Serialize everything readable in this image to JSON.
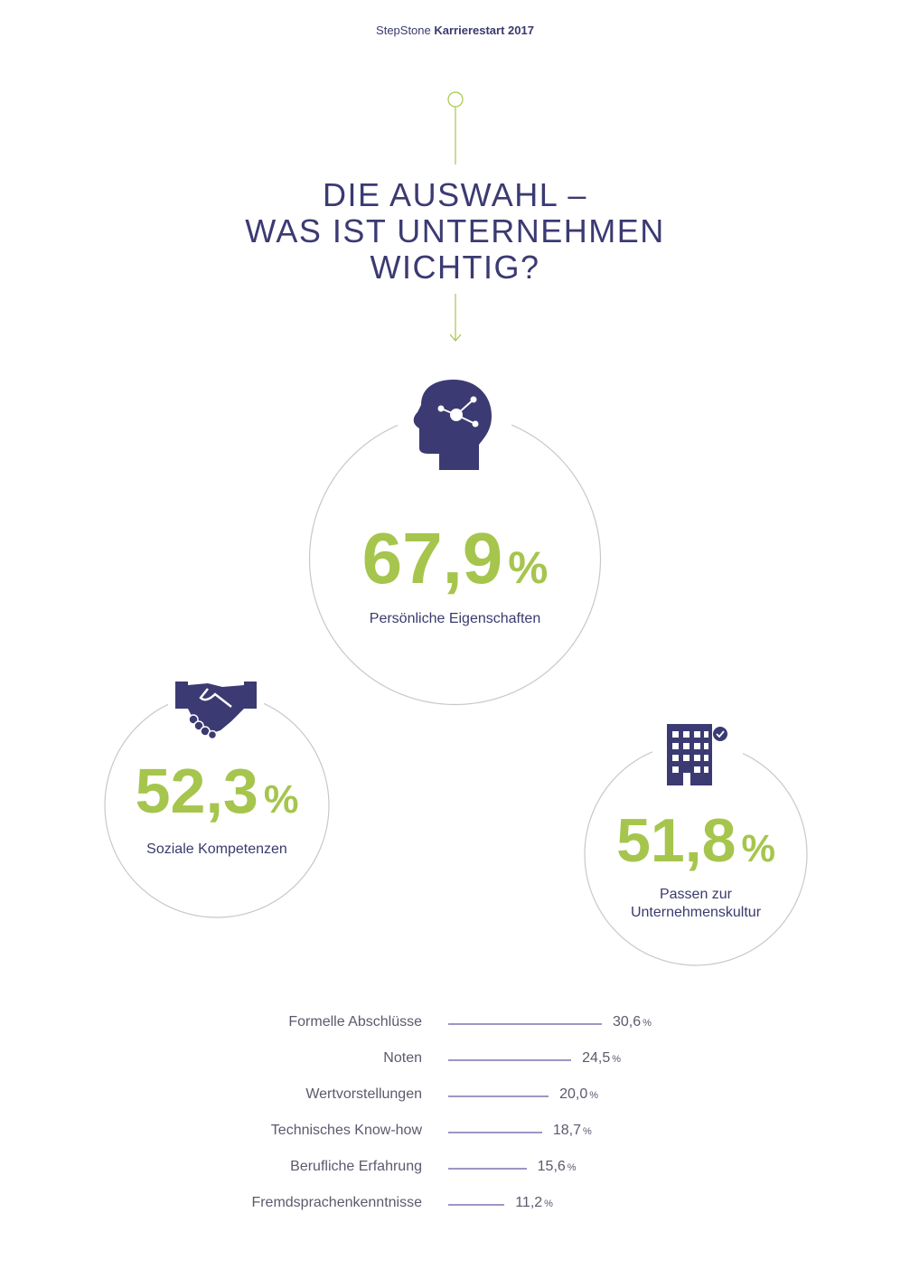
{
  "header": {
    "brand": "StepStone",
    "report": "Karrierestart 2017"
  },
  "title": "DIE AUSWAHL –\nWAS IST UNTERNEHMEN\nWICHTIG?",
  "colors": {
    "navy": "#3b3a72",
    "green": "#a6c54d",
    "bar": "#9b97c4",
    "circle": "#c8c8c8"
  },
  "highlights": [
    {
      "value": "67,9",
      "unit": "%",
      "label": "Persönliche Eigenschaften",
      "icon": "head-network-icon"
    },
    {
      "value": "52,3",
      "unit": "%",
      "label": "Soziale Kompetenzen",
      "icon": "handshake-icon"
    },
    {
      "value": "51,8",
      "unit": "%",
      "label": "Passen zur\nUnternehmenskultur",
      "icon": "building-check-icon"
    }
  ],
  "chart_data": {
    "type": "bar",
    "orientation": "horizontal",
    "categories": [
      "Formelle Abschlüsse",
      "Noten",
      "Wertvorstellungen",
      "Technisches Know-how",
      "Berufliche Erfahrung",
      "Fremdsprachenkenntnisse"
    ],
    "values": [
      30.6,
      24.5,
      20.0,
      18.7,
      15.6,
      11.2
    ],
    "value_labels": [
      "30,6",
      "24,5",
      "20,0",
      "18,7",
      "15,6",
      "11,2"
    ],
    "unit": "%",
    "grid": false
  }
}
